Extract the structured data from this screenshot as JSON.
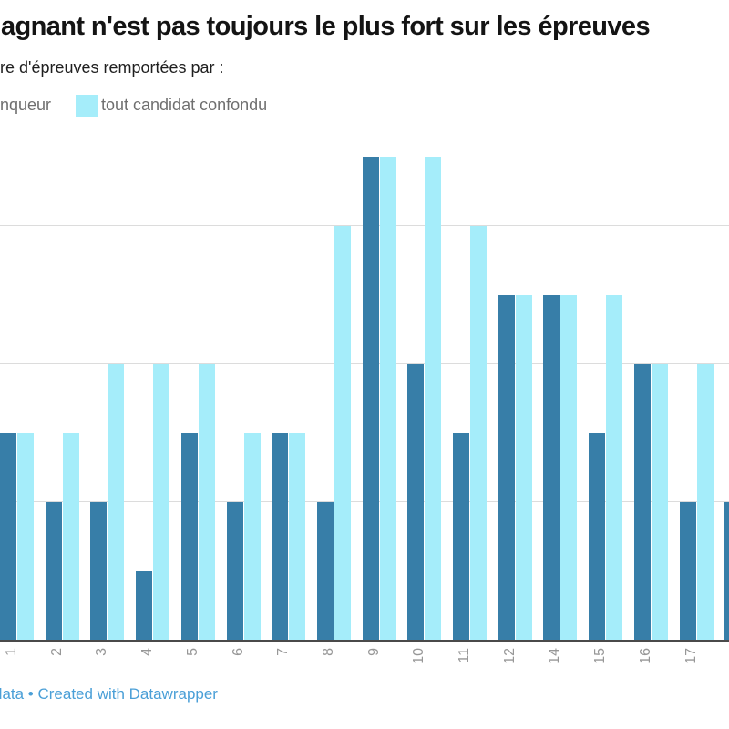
{
  "header": {
    "title": "agnant n'est pas toujours le plus fort sur les épreuves",
    "subtitle": "re d'épreuves remportées par :"
  },
  "legend": {
    "position": "top",
    "items": [
      {
        "label": "nqueur",
        "swatch_visible": false
      },
      {
        "label": "tout candidat confondu",
        "swatch_visible": true,
        "swatch_color": "#a5edfa"
      }
    ]
  },
  "footer": {
    "credit": "data • Created with Datawrapper",
    "link_color": "#4a9fd7"
  },
  "chart_data": {
    "type": "bar",
    "grouped": true,
    "title": "agnant n'est pas toujours le plus fort sur les épreuves",
    "subtitle": "re d'épreuves remportées par :",
    "xlabel": "",
    "ylabel": "",
    "categories": [
      "1",
      "2",
      "3",
      "4",
      "5",
      "6",
      "7",
      "8",
      "9",
      "10",
      "11",
      "12",
      "14",
      "15",
      "16",
      "17",
      ""
    ],
    "series": [
      {
        "name": "nqueur",
        "color": "#377ea8",
        "values": [
          3,
          2,
          2,
          1,
          3,
          2,
          3,
          2,
          7,
          4,
          3,
          5,
          5,
          3,
          4,
          2,
          2
        ]
      },
      {
        "name": "tout candidat confondu",
        "color": "#a5edfa",
        "values": [
          3,
          3,
          4,
          4,
          4,
          3,
          3,
          6,
          7,
          7,
          6,
          5,
          5,
          5,
          4,
          4,
          null
        ]
      }
    ],
    "ylim": [
      0,
      8
    ],
    "grid": true,
    "gridline_values": [
      2,
      4,
      6
    ],
    "legend_position": "top",
    "colors": {
      "gridline": "#dcdcdc",
      "axis": "#4a4a4a",
      "tick_label": "#979797"
    }
  }
}
